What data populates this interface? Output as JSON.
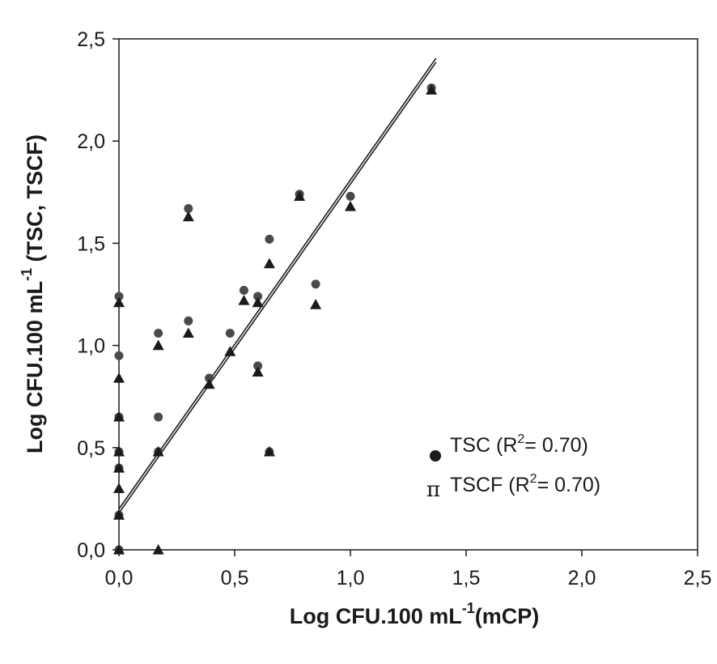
{
  "chart_data": {
    "type": "scatter",
    "xlabel": {
      "text": "Log CFU.100 mL",
      "sup": "-1",
      "suffix": "(mCP)"
    },
    "ylabel": {
      "text": "Log CFU.100 mL",
      "sup": "-1",
      "suffix": " (TSC, TSCF)"
    },
    "xlim": [
      0,
      2.5
    ],
    "ylim": [
      0,
      2.5
    ],
    "x_ticks": [
      "0,0",
      "0,5",
      "1,0",
      "1,5",
      "2,0",
      "2,5"
    ],
    "y_ticks": [
      "0,0",
      "0,5",
      "1,0",
      "1,5",
      "2,0",
      "2,5"
    ],
    "tick_values": [
      0,
      0.5,
      1.0,
      1.5,
      2.0,
      2.5
    ],
    "grid": false,
    "legend_position": "bottom-right",
    "series": [
      {
        "name": "TSC",
        "r2_label": "(R",
        "r2_sup": "2",
        "r2_value": "= 0.70)",
        "marker": "circle",
        "marker_symbol": "●",
        "color": "#4a4a4a",
        "points": [
          [
            0,
            0
          ],
          [
            0,
            0.17
          ],
          [
            0,
            0.4
          ],
          [
            0,
            0.48
          ],
          [
            0,
            0.65
          ],
          [
            0,
            0.95
          ],
          [
            0,
            1.24
          ],
          [
            0.17,
            0.65
          ],
          [
            0.17,
            1.06
          ],
          [
            0.17,
            0.48
          ],
          [
            0.3,
            1.12
          ],
          [
            0.3,
            1.67
          ],
          [
            0.39,
            0.84
          ],
          [
            0.48,
            1.06
          ],
          [
            0.54,
            1.27
          ],
          [
            0.6,
            1.24
          ],
          [
            0.6,
            0.9
          ],
          [
            0.65,
            1.52
          ],
          [
            0.65,
            0.48
          ],
          [
            0.78,
            1.74
          ],
          [
            0.85,
            1.3
          ],
          [
            1.0,
            1.73
          ],
          [
            1.35,
            2.26
          ]
        ],
        "fit": {
          "slope": 1.61,
          "intercept": 0.18,
          "x_range": [
            0,
            1.37
          ]
        }
      },
      {
        "name": "TSCF",
        "r2_label": "(R",
        "r2_sup": "2",
        "r2_value": "= 0.70)",
        "marker": "triangle",
        "marker_symbol": "π",
        "color": "#1a1a1a",
        "points": [
          [
            0,
            0
          ],
          [
            0,
            0.17
          ],
          [
            0,
            0.3
          ],
          [
            0,
            0.4
          ],
          [
            0,
            0.48
          ],
          [
            0,
            0.65
          ],
          [
            0,
            0.84
          ],
          [
            0,
            1.21
          ],
          [
            0.17,
            0
          ],
          [
            0.17,
            0.48
          ],
          [
            0.17,
            1.0
          ],
          [
            0.3,
            1.06
          ],
          [
            0.3,
            1.63
          ],
          [
            0.39,
            0.81
          ],
          [
            0.48,
            0.97
          ],
          [
            0.54,
            1.22
          ],
          [
            0.6,
            1.21
          ],
          [
            0.6,
            0.87
          ],
          [
            0.65,
            1.4
          ],
          [
            0.65,
            0.48
          ],
          [
            0.78,
            1.73
          ],
          [
            0.85,
            1.2
          ],
          [
            1.0,
            1.68
          ],
          [
            1.35,
            2.25
          ]
        ],
        "fit": {
          "slope": 1.61,
          "intercept": 0.2,
          "x_range": [
            0,
            1.37
          ]
        }
      }
    ]
  }
}
